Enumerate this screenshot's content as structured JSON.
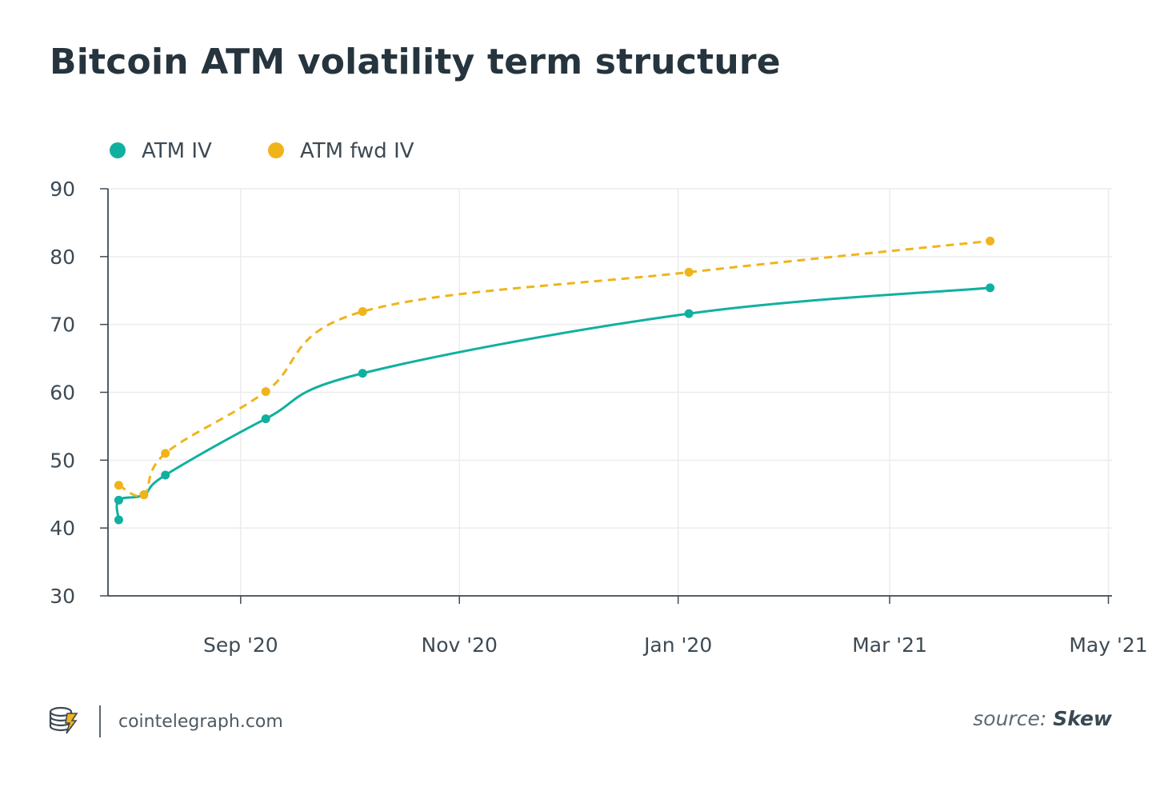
{
  "page": {
    "site": "cointelegraph.com",
    "source_prefix": "source:",
    "source_name": "Skew",
    "logo_icon": "cointelegraph-logo-icon"
  },
  "chart_data": {
    "type": "line",
    "title": "Bitcoin ATM volatility term structure",
    "xlabel": "",
    "ylabel": "",
    "ylim": [
      30,
      90
    ],
    "yticks": [
      30,
      40,
      50,
      60,
      70,
      80,
      90
    ],
    "xlim": [
      "2020-07-25",
      "2021-05-01"
    ],
    "xticks": [
      {
        "date": "2020-08-31",
        "label": "Sep '20"
      },
      {
        "date": "2020-10-31",
        "label": "Nov '20"
      },
      {
        "date": "2020-12-31",
        "label": "Jan '20"
      },
      {
        "date": "2021-02-28",
        "label": "Mar '21"
      },
      {
        "date": "2021-04-30",
        "label": "May '21"
      }
    ],
    "grid": true,
    "legend_position": "top-left",
    "series": [
      {
        "name": "ATM IV",
        "color": "#10b0a0",
        "dash": false,
        "points": [
          {
            "x": "2020-07-28",
            "y": 41.2
          },
          {
            "x": "2020-07-28",
            "y": 44.1
          },
          {
            "x": "2020-08-04",
            "y": 44.9
          },
          {
            "x": "2020-08-10",
            "y": 47.8
          },
          {
            "x": "2020-09-07",
            "y": 56.1
          },
          {
            "x": "2020-10-04",
            "y": 62.8
          },
          {
            "x": "2021-01-03",
            "y": 71.6
          },
          {
            "x": "2021-03-28",
            "y": 75.4
          }
        ]
      },
      {
        "name": "ATM fwd IV",
        "color": "#f0b41a",
        "dash": true,
        "points": [
          {
            "x": "2020-07-28",
            "y": 46.3
          },
          {
            "x": "2020-08-04",
            "y": 44.9
          },
          {
            "x": "2020-08-10",
            "y": 51.0
          },
          {
            "x": "2020-09-07",
            "y": 60.1
          },
          {
            "x": "2020-10-04",
            "y": 71.9
          },
          {
            "x": "2021-01-03",
            "y": 77.7
          },
          {
            "x": "2021-03-28",
            "y": 82.3
          }
        ]
      }
    ]
  }
}
